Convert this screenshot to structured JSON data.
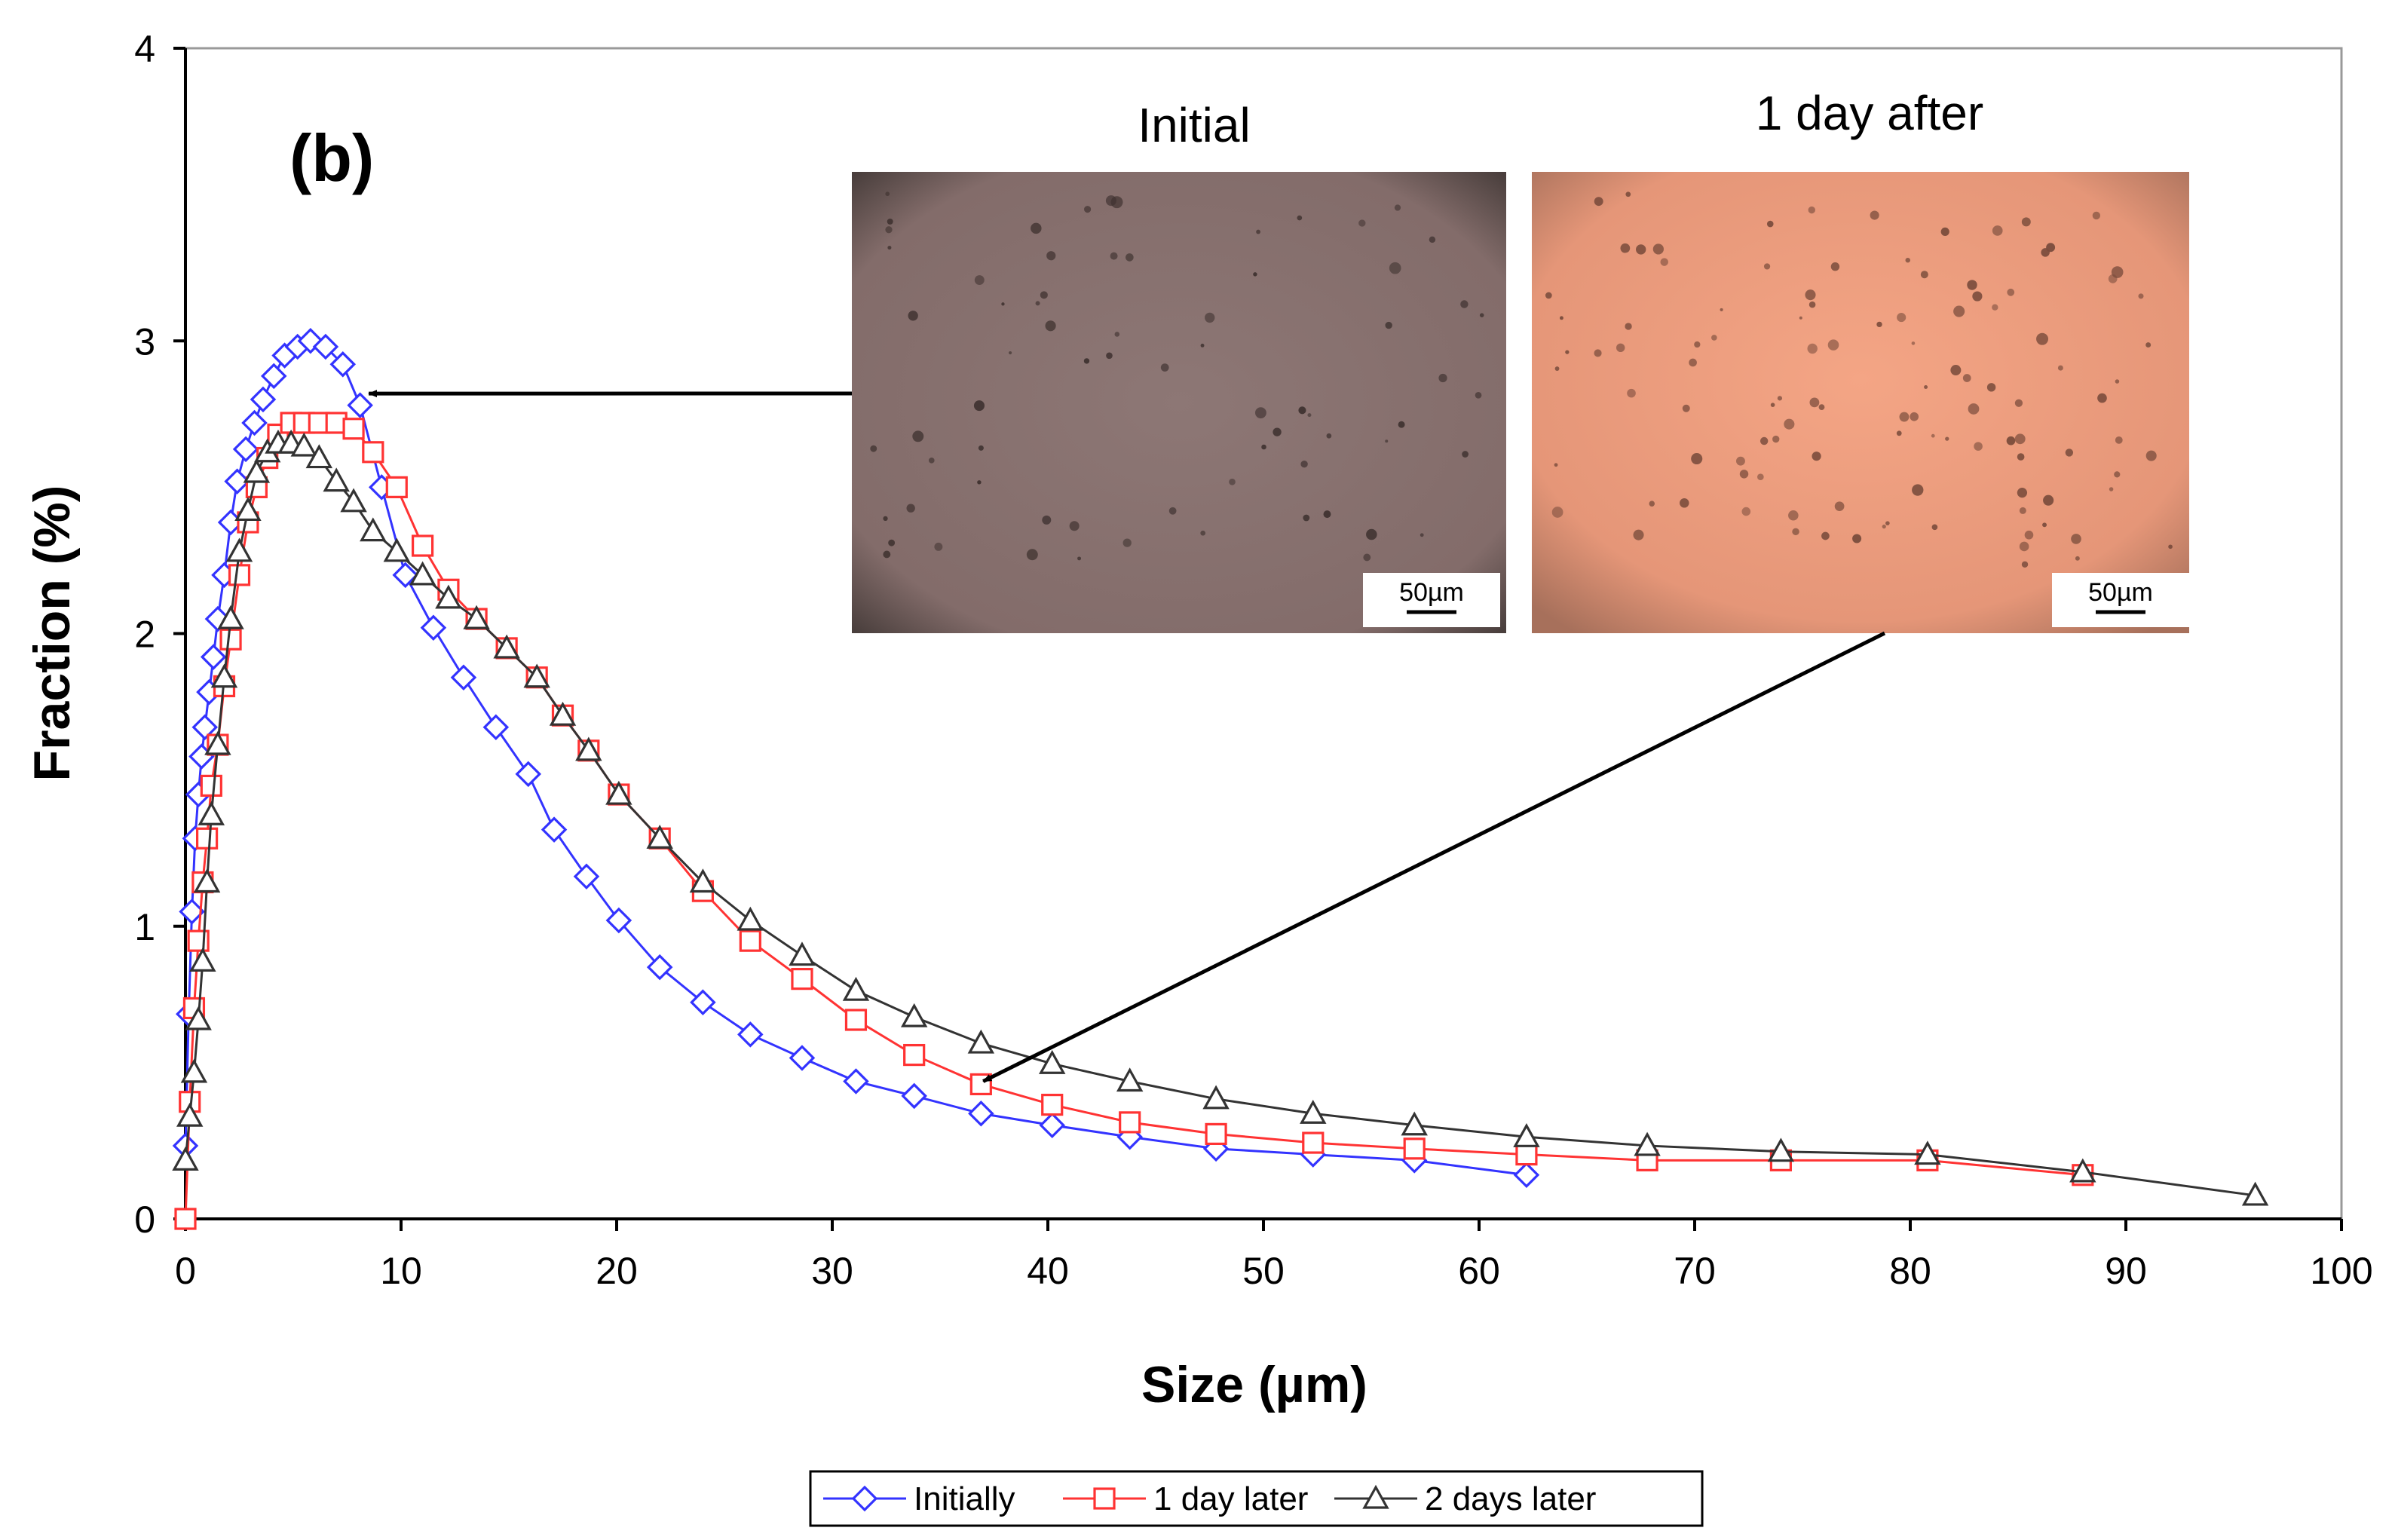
{
  "chart_data": {
    "type": "line",
    "panel_label": "(b)",
    "xlabel": "Size (µm)",
    "ylabel": "Fraction (%)",
    "xlim": [
      0,
      100
    ],
    "ylim": [
      0,
      4
    ],
    "xticks": [
      0,
      10,
      20,
      30,
      40,
      50,
      60,
      70,
      80,
      90,
      100
    ],
    "yticks": [
      0,
      1,
      2,
      3,
      4
    ],
    "grid": false,
    "legend_position": "bottom-center",
    "series": [
      {
        "name": "Initially",
        "color": "#3333ff",
        "marker": "diamond",
        "x": [
          0.0,
          0.15,
          0.3,
          0.45,
          0.6,
          0.75,
          0.9,
          1.1,
          1.3,
          1.5,
          1.8,
          2.1,
          2.4,
          2.8,
          3.2,
          3.6,
          4.1,
          4.6,
          5.2,
          5.8,
          6.5,
          7.3,
          8.1,
          9.1,
          10.2,
          11.5,
          12.9,
          14.4,
          15.9,
          17.1,
          18.6,
          20.1,
          22.0,
          24.0,
          26.2,
          28.6,
          31.1,
          33.8,
          36.9,
          40.2,
          43.8,
          47.8,
          52.3,
          57.0,
          62.2
        ],
        "y": [
          0.25,
          0.7,
          1.05,
          1.3,
          1.45,
          1.58,
          1.68,
          1.8,
          1.92,
          2.05,
          2.2,
          2.38,
          2.52,
          2.63,
          2.72,
          2.8,
          2.88,
          2.95,
          2.98,
          3.0,
          2.98,
          2.92,
          2.78,
          2.5,
          2.2,
          2.02,
          1.85,
          1.68,
          1.52,
          1.33,
          1.17,
          1.02,
          0.86,
          0.74,
          0.63,
          0.55,
          0.47,
          0.42,
          0.36,
          0.32,
          0.28,
          0.24,
          0.22,
          0.2,
          0.15
        ]
      },
      {
        "name": "1 day later",
        "color": "#ff3333",
        "marker": "square",
        "x": [
          0.0,
          0.2,
          0.4,
          0.6,
          0.8,
          1.0,
          1.2,
          1.5,
          1.8,
          2.1,
          2.5,
          2.9,
          3.3,
          3.8,
          4.3,
          4.9,
          5.5,
          6.2,
          7.0,
          7.8,
          8.7,
          9.8,
          11.0,
          12.2,
          13.5,
          14.9,
          16.3,
          17.5,
          18.7,
          20.1,
          22.0,
          24.0,
          26.2,
          28.6,
          31.1,
          33.8,
          36.9,
          40.2,
          43.8,
          47.8,
          52.3,
          57.0,
          62.2,
          67.8,
          74.0,
          80.8,
          88.0
        ],
        "y": [
          0.0,
          0.4,
          0.72,
          0.95,
          1.15,
          1.3,
          1.48,
          1.62,
          1.82,
          1.98,
          2.2,
          2.38,
          2.5,
          2.6,
          2.68,
          2.72,
          2.72,
          2.72,
          2.72,
          2.7,
          2.62,
          2.5,
          2.3,
          2.15,
          2.05,
          1.95,
          1.85,
          1.72,
          1.6,
          1.45,
          1.3,
          1.12,
          0.95,
          0.82,
          0.68,
          0.56,
          0.46,
          0.39,
          0.33,
          0.29,
          0.26,
          0.24,
          0.22,
          0.2,
          0.2,
          0.2,
          0.15
        ]
      },
      {
        "name": "2 days later",
        "color": "#333333",
        "marker": "triangle",
        "x": [
          0.0,
          0.2,
          0.4,
          0.6,
          0.8,
          1.0,
          1.2,
          1.5,
          1.8,
          2.1,
          2.5,
          2.9,
          3.3,
          3.8,
          4.3,
          4.9,
          5.5,
          6.2,
          7.0,
          7.8,
          8.7,
          9.8,
          11.0,
          12.2,
          13.5,
          14.9,
          16.3,
          17.5,
          18.7,
          20.1,
          22.0,
          24.0,
          26.2,
          28.6,
          31.1,
          33.8,
          36.9,
          40.2,
          43.8,
          47.8,
          52.3,
          57.0,
          62.2,
          67.8,
          74.0,
          80.8,
          88.0,
          96.0
        ],
        "y": [
          0.2,
          0.35,
          0.5,
          0.68,
          0.88,
          1.15,
          1.38,
          1.62,
          1.85,
          2.05,
          2.28,
          2.42,
          2.55,
          2.62,
          2.65,
          2.65,
          2.64,
          2.6,
          2.52,
          2.45,
          2.35,
          2.28,
          2.2,
          2.12,
          2.05,
          1.95,
          1.85,
          1.72,
          1.6,
          1.45,
          1.3,
          1.15,
          1.02,
          0.9,
          0.78,
          0.69,
          0.6,
          0.53,
          0.47,
          0.41,
          0.36,
          0.32,
          0.28,
          0.25,
          0.23,
          0.22,
          0.16,
          0.08
        ]
      }
    ],
    "insets": [
      {
        "title": "Initial",
        "scale_label": "50µm",
        "arrow_target": {
          "x": 8.5,
          "y": 2.82
        }
      },
      {
        "title": "1 day after",
        "scale_label": "50µm",
        "arrow_target": {
          "x": 37,
          "y": 0.47
        }
      }
    ]
  }
}
